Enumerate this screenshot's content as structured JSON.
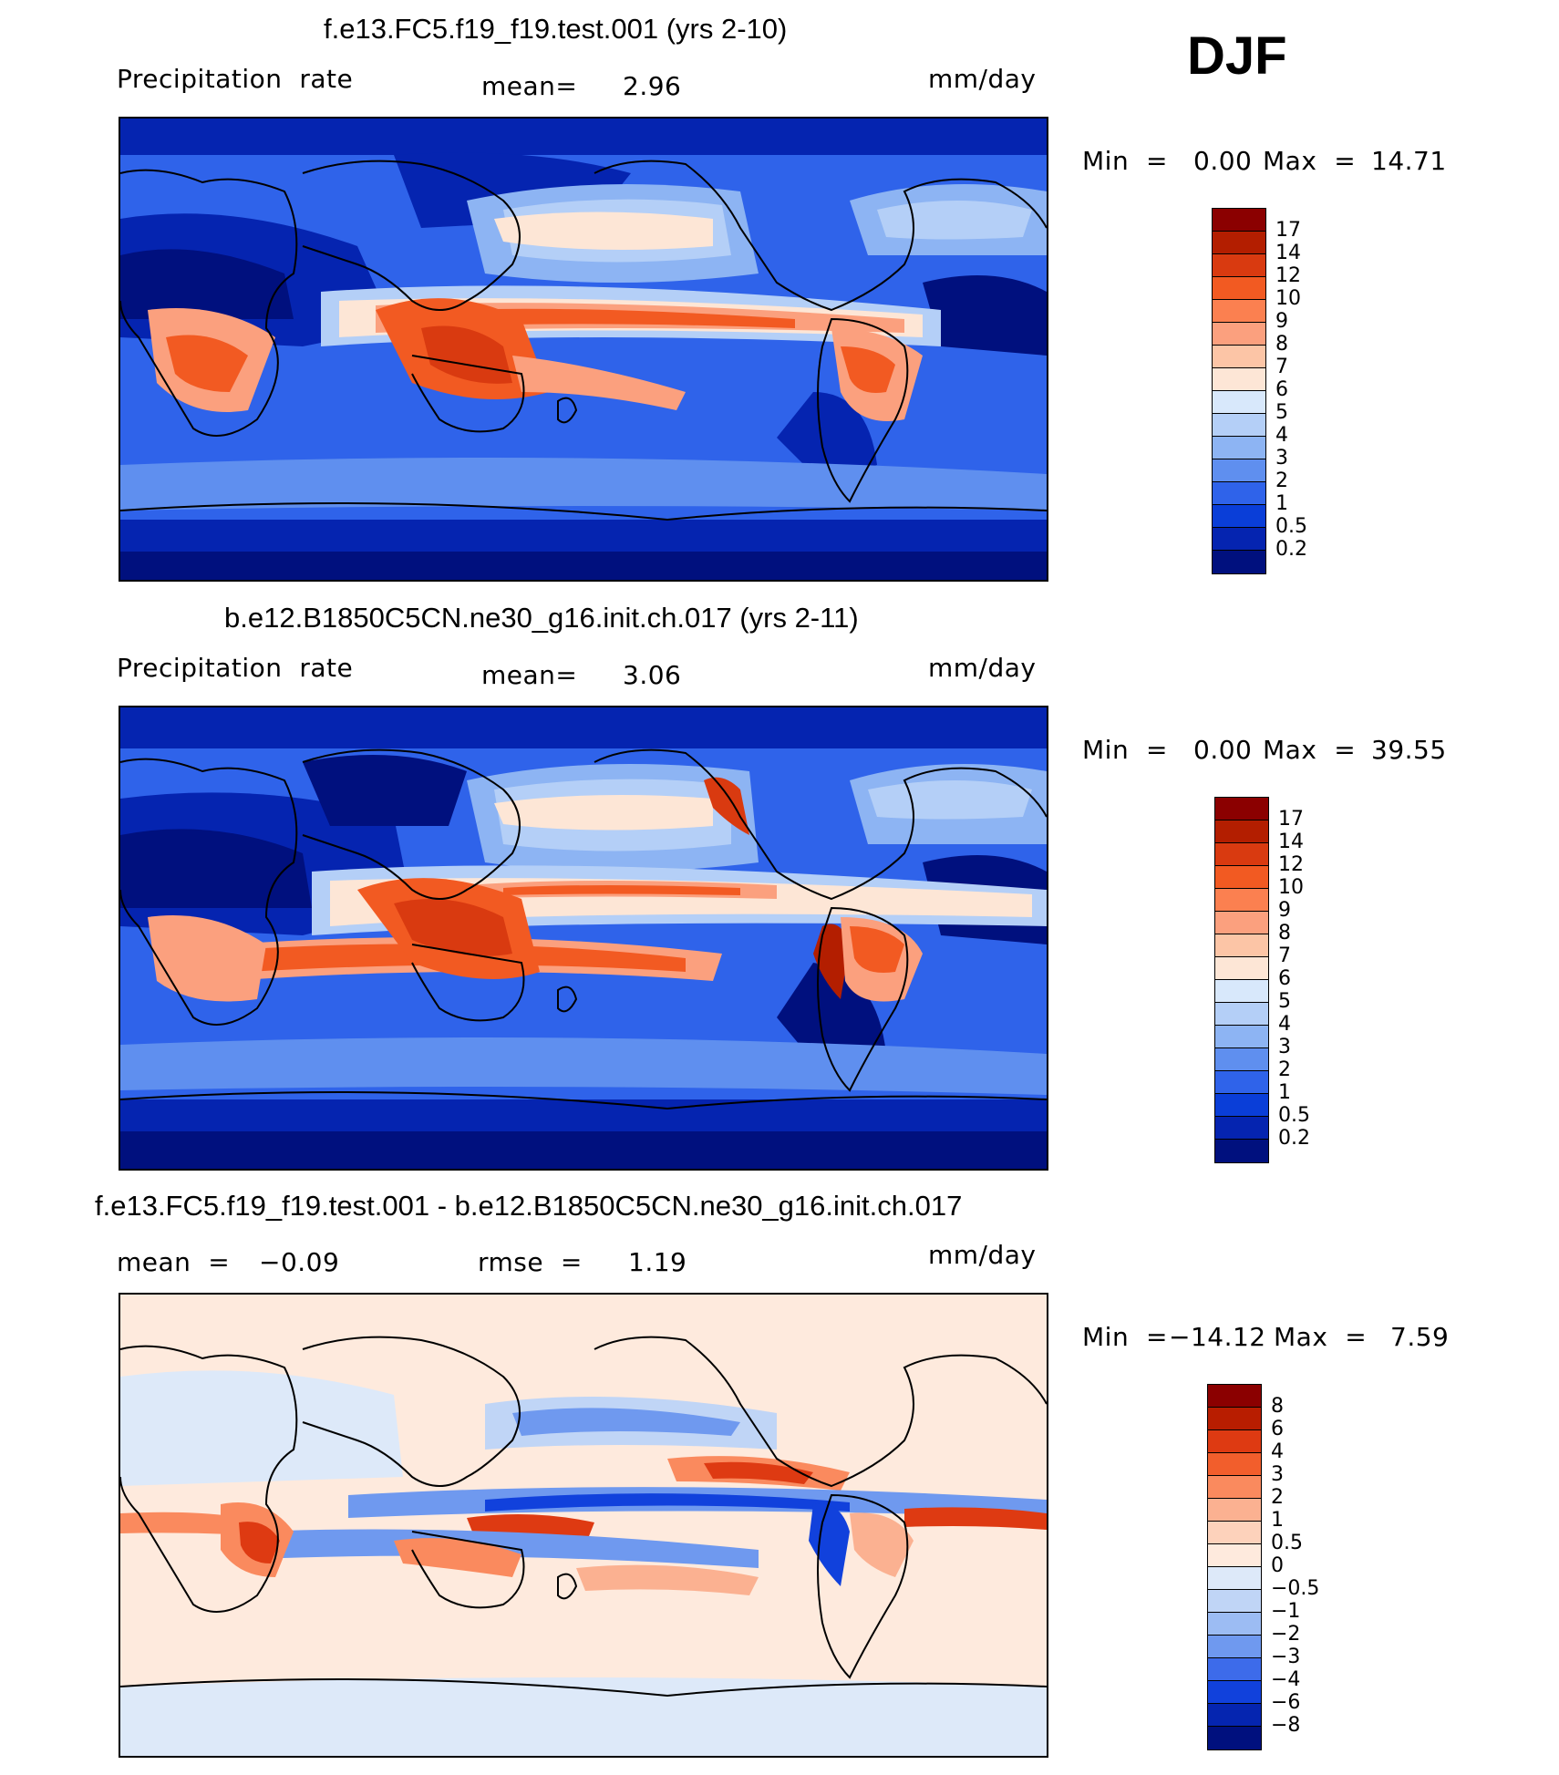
{
  "season": "DJF",
  "panels": [
    {
      "id": "test",
      "title": "f.e13.FC5.f19_f19.test.001 (yrs 2-10)",
      "left_label": "Precipitation  rate",
      "center_label": "mean=",
      "center_value": "2.96",
      "units": "mm/day",
      "min_label": "Min  =",
      "min_value": "0.00",
      "max_label": "Max  =",
      "max_value": "14.71",
      "colorbar": {
        "labels": [
          "17",
          "14",
          "12",
          "10",
          "9",
          "8",
          "7",
          "6",
          "5",
          "4",
          "3",
          "2",
          "1",
          "0.5",
          "0.2"
        ],
        "colors": [
          "#8b0000",
          "#b31e00",
          "#d93a10",
          "#f25a22",
          "#fb8050",
          "#fba07e",
          "#fcc5a6",
          "#fde6d6",
          "#d8e8fb",
          "#b4cff7",
          "#8db4f3",
          "#5f8fef",
          "#2f63ea",
          "#0a3ed8",
          "#0524b0",
          "#00107e"
        ]
      }
    },
    {
      "id": "control",
      "title": "b.e12.B1850C5CN.ne30_g16.init.ch.017 (yrs 2-11)",
      "left_label": "Precipitation  rate",
      "center_label": "mean=",
      "center_value": "3.06",
      "units": "mm/day",
      "min_label": "Min  =",
      "min_value": "0.00",
      "max_label": "Max  =",
      "max_value": "39.55",
      "colorbar": {
        "labels": [
          "17",
          "14",
          "12",
          "10",
          "9",
          "8",
          "7",
          "6",
          "5",
          "4",
          "3",
          "2",
          "1",
          "0.5",
          "0.2"
        ],
        "colors": [
          "#8b0000",
          "#b31e00",
          "#d93a10",
          "#f25a22",
          "#fb8050",
          "#fba07e",
          "#fcc5a6",
          "#fde6d6",
          "#d8e8fb",
          "#b4cff7",
          "#8db4f3",
          "#5f8fef",
          "#2f63ea",
          "#0a3ed8",
          "#0524b0",
          "#00107e"
        ]
      }
    },
    {
      "id": "diff",
      "title": "f.e13.FC5.f19_f19.test.001 - b.e12.B1850C5CN.ne30_g16.init.ch.017",
      "left_label": "mean  =",
      "left_value": "−0.09",
      "center_label": "rmse  =",
      "center_value": "1.19",
      "units": "mm/day",
      "min_label": "Min  =",
      "min_value": "−14.12",
      "max_label": "Max  =",
      "max_value": "7.59",
      "colorbar": {
        "labels": [
          "8",
          "6",
          "4",
          "3",
          "2",
          "1",
          "0.5",
          "0",
          "−0.5",
          "−1",
          "−2",
          "−3",
          "−4",
          "−6",
          "−8"
        ],
        "colors": [
          "#8b0000",
          "#b81d00",
          "#de3a12",
          "#f25e2c",
          "#fa8a5e",
          "#fbb191",
          "#fdd2bb",
          "#feeadd",
          "#dde9f9",
          "#c0d5f6",
          "#9cbcf3",
          "#6f99ef",
          "#3d6bea",
          "#1141dc",
          "#0525b0",
          "#00107e"
        ]
      }
    }
  ],
  "map_palettes": {
    "field": {
      "ocean_bg": "#2f63ea",
      "deep": "#0524b0",
      "polar": "#00107e",
      "mid": "#5f8fef",
      "light": "#8db4f3",
      "pale": "#b4cff7",
      "cream": "#fde6d6",
      "peach": "#fba07e",
      "orange": "#f25a22",
      "red": "#d93a10",
      "dark": "#b31e00"
    },
    "diff": {
      "bg": "#feeadd",
      "pale_blue": "#dde9f9",
      "light_blue": "#c0d5f6",
      "blue": "#6f99ef",
      "dark_blue": "#1141dc",
      "peach": "#fbb191",
      "orange": "#fa8a5e",
      "red": "#de3a12",
      "dark_red": "#8b0000"
    }
  }
}
